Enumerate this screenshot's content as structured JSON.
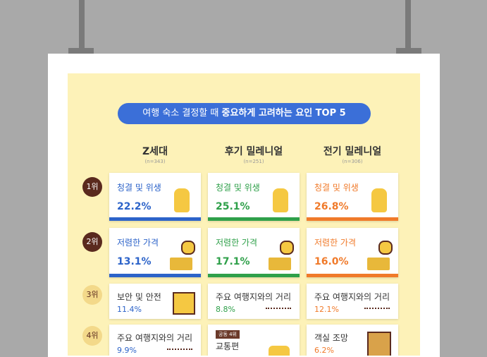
{
  "title": {
    "normal": "여행 숙소 결정할 때",
    "bold": "중요하게 고려하는 요인 TOP 5"
  },
  "columns": [
    {
      "name": "Z세대",
      "n": "(n=343)"
    },
    {
      "name": "후기 밀레니얼",
      "n": "(n=251)"
    },
    {
      "name": "전기 밀레니얼",
      "n": "(n=306)"
    }
  ],
  "rows": [
    {
      "rank": "1위",
      "cells": [
        {
          "label": "청결 및 위생",
          "value": "22.2%"
        },
        {
          "label": "청결 및 위생",
          "value": "25.1%"
        },
        {
          "label": "청결 및 위생",
          "value": "26.8%"
        }
      ]
    },
    {
      "rank": "2위",
      "cells": [
        {
          "label": "저렴한 가격",
          "value": "13.1%"
        },
        {
          "label": "저렴한 가격",
          "value": "17.1%"
        },
        {
          "label": "저렴한 가격",
          "value": "16.0%"
        }
      ]
    },
    {
      "rank": "3위",
      "cells": [
        {
          "label": "보안 및 안전",
          "value": "11.4%"
        },
        {
          "label": "주요 여행지와의 거리",
          "value": "8.8%"
        },
        {
          "label": "주요 여행지와의 거리",
          "value": "12.1%"
        }
      ]
    },
    {
      "rank": "4위",
      "cells": [
        {
          "label": "주요 여행지와의 거리",
          "value": "9.9%"
        },
        {
          "tag": "공동 4위",
          "label": "교통편"
        },
        {
          "label": "객실 조망",
          "value": "6.2%"
        }
      ]
    }
  ]
}
